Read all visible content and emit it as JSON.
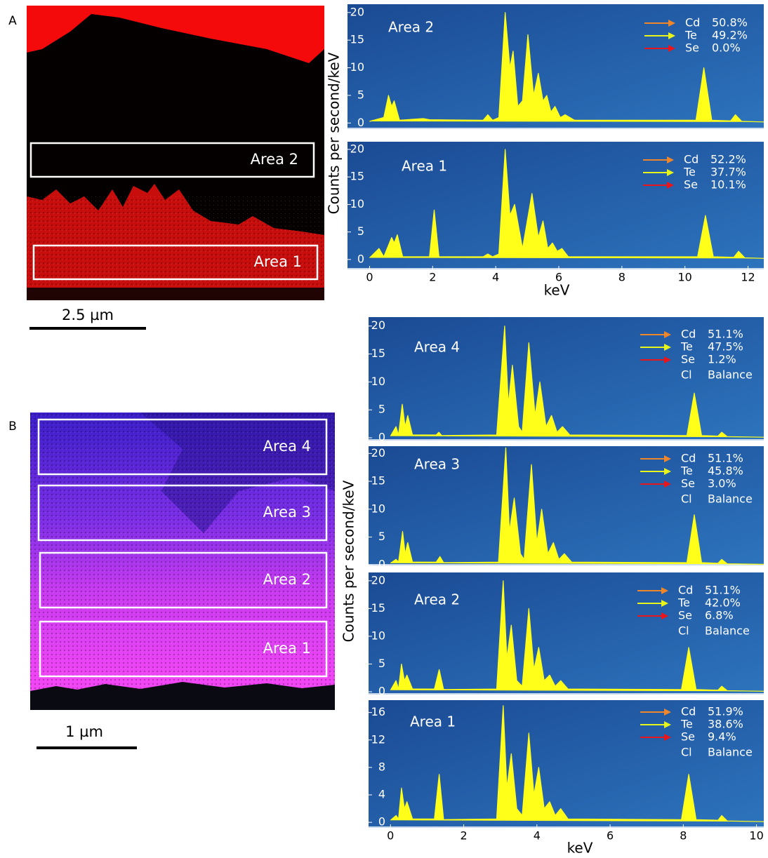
{
  "panels": [
    {
      "label": "A",
      "scale_bar": "2.5 µm",
      "areas": [
        "Area 2",
        "Area 1"
      ],
      "y_label": "Counts per second/keV",
      "x_label": "keV"
    },
    {
      "label": "B",
      "scale_bar": "1 µm",
      "areas": [
        "Area 4",
        "Area 3",
        "Area 2",
        "Area 1"
      ],
      "y_label": "Counts per second/keV",
      "x_label": "keV"
    }
  ],
  "chart_data": [
    {
      "type": "area",
      "title": "Area 2",
      "color": "#ffff1a",
      "xlim": [
        -0.7,
        12.5
      ],
      "ylim": [
        -1.1,
        21.5
      ],
      "yticks": [
        0,
        5,
        10,
        15,
        20
      ],
      "x": [
        0,
        0.45,
        0.6,
        0.7,
        0.78,
        0.95,
        1.7,
        1.9,
        3.6,
        3.75,
        3.9,
        4.1,
        4.3,
        4.45,
        4.55,
        4.7,
        4.85,
        5.02,
        5.2,
        5.35,
        5.5,
        5.62,
        5.75,
        5.88,
        6.05,
        6.2,
        6.5,
        10.35,
        10.6,
        10.85,
        11.45,
        11.6,
        11.8,
        12.5
      ],
      "values": [
        0.3,
        1,
        5,
        3,
        4,
        0.5,
        0.8,
        0.6,
        0.5,
        1.5,
        0.5,
        1,
        20,
        10,
        13,
        3,
        4,
        16,
        5,
        9,
        4,
        5,
        2,
        3,
        1,
        1.5,
        0.5,
        0.5,
        10,
        0.5,
        0.4,
        1.5,
        0.3,
        0.2
      ],
      "legend": [
        {
          "name": "Cd",
          "label": "50.8%",
          "color": "#f0862a"
        },
        {
          "name": "Te",
          "label": "49.2%",
          "color": "#e8f51c"
        },
        {
          "name": "Se",
          "label": "0.0%",
          "color": "#e8161c"
        }
      ]
    },
    {
      "type": "area",
      "title": "Area 1",
      "color": "#ffff1a",
      "xlim": [
        -0.7,
        12.5
      ],
      "ylim": [
        -1.8,
        21.4
      ],
      "yticks": [
        0,
        5,
        10,
        15,
        20
      ],
      "xticks": [
        0,
        2,
        4,
        6,
        8,
        10,
        12
      ],
      "x": [
        0,
        0.3,
        0.45,
        0.7,
        0.78,
        0.88,
        1.05,
        1.9,
        2.05,
        2.2,
        3.6,
        3.75,
        3.9,
        4.1,
        4.3,
        4.45,
        4.6,
        4.85,
        5.15,
        5.35,
        5.5,
        5.65,
        5.8,
        5.95,
        6.1,
        6.3,
        10.4,
        10.65,
        10.9,
        11.55,
        11.7,
        11.9,
        12.5
      ],
      "values": [
        0.3,
        2,
        0.5,
        4,
        3,
        4.5,
        0.5,
        0.5,
        9,
        0.5,
        0.5,
        1,
        0.5,
        1,
        20,
        8,
        10,
        2,
        12,
        4,
        7,
        2,
        3,
        1.5,
        2,
        0.5,
        0.5,
        8,
        0.5,
        0.4,
        1.5,
        0.3,
        0.2
      ],
      "legend": [
        {
          "name": "Cd",
          "label": "52.2%",
          "color": "#f0862a"
        },
        {
          "name": "Te",
          "label": "37.7%",
          "color": "#e8f51c"
        },
        {
          "name": "Se",
          "label": "10.1%",
          "color": "#e8161c"
        }
      ]
    },
    {
      "type": "area",
      "title": "Area 4",
      "color": "#ffff1a",
      "xlim": [
        -0.6,
        10.2
      ],
      "ylim": [
        -0.5,
        21.6
      ],
      "yticks": [
        0,
        5,
        10,
        15,
        20
      ],
      "x": [
        0,
        0.15,
        0.22,
        0.32,
        0.4,
        0.47,
        0.6,
        1.25,
        1.32,
        1.4,
        2.9,
        3.12,
        3.22,
        3.33,
        3.5,
        3.6,
        3.78,
        3.95,
        4.08,
        4.25,
        4.4,
        4.55,
        4.7,
        4.9,
        8.1,
        8.3,
        8.5,
        8.95,
        9.05,
        9.2,
        10.2
      ],
      "values": [
        0.3,
        2,
        0.5,
        6,
        2,
        4,
        0.5,
        0.5,
        1,
        0.4,
        0.5,
        20,
        6,
        13,
        2,
        1,
        17,
        4,
        10,
        2,
        4,
        1,
        2,
        0.5,
        0.4,
        8,
        0.4,
        0.3,
        1,
        0.2,
        0.1
      ],
      "legend": [
        {
          "name": "Cd",
          "label": "51.1%",
          "color": "#f0862a"
        },
        {
          "name": "Te",
          "label": "47.5%",
          "color": "#e8f51c"
        },
        {
          "name": "Se",
          "label": "1.2%",
          "color": "#e8161c"
        },
        {
          "name": "Cl",
          "label": "Balance"
        }
      ]
    },
    {
      "type": "area",
      "title": "Area 3",
      "color": "#ffff1a",
      "xlim": [
        -0.6,
        10.2
      ],
      "ylim": [
        -0.1,
        21.3
      ],
      "yticks": [
        0,
        5,
        10,
        15,
        20
      ],
      "x": [
        0,
        0.15,
        0.22,
        0.33,
        0.4,
        0.47,
        0.6,
        1.25,
        1.35,
        1.45,
        2.95,
        3.15,
        3.25,
        3.38,
        3.55,
        3.65,
        3.85,
        4.0,
        4.13,
        4.3,
        4.45,
        4.6,
        4.75,
        4.95,
        8.1,
        8.3,
        8.5,
        8.95,
        9.05,
        9.2,
        10.2
      ],
      "values": [
        0.3,
        1,
        0.5,
        6,
        2,
        4,
        0.5,
        0.5,
        1.5,
        0.4,
        0.5,
        21,
        6,
        12,
        2,
        1,
        18,
        4,
        10,
        2,
        4,
        1,
        2,
        0.5,
        0.4,
        9,
        0.4,
        0.3,
        1,
        0.2,
        0.1
      ],
      "legend": [
        {
          "name": "Cd",
          "label": "51.1%",
          "color": "#f0862a"
        },
        {
          "name": "Te",
          "label": "45.8%",
          "color": "#e8f51c"
        },
        {
          "name": "Se",
          "label": "3.0%",
          "color": "#e8161c"
        },
        {
          "name": "Cl",
          "label": "Balance"
        }
      ]
    },
    {
      "type": "area",
      "title": "Area 2",
      "color": "#ffff1a",
      "xlim": [
        -0.6,
        10.2
      ],
      "ylim": [
        -0.5,
        21.5
      ],
      "yticks": [
        0,
        5,
        10,
        15,
        20
      ],
      "x": [
        0,
        0.15,
        0.22,
        0.3,
        0.38,
        0.45,
        0.6,
        1.2,
        1.33,
        1.45,
        2.9,
        3.08,
        3.18,
        3.3,
        3.45,
        3.6,
        3.78,
        3.92,
        4.05,
        4.2,
        4.35,
        4.5,
        4.65,
        4.85,
        7.95,
        8.15,
        8.35,
        8.95,
        9.05,
        9.2,
        10.2
      ],
      "values": [
        0.3,
        2,
        0.5,
        5,
        2,
        3,
        0.5,
        0.5,
        4,
        0.4,
        0.5,
        20,
        6,
        12,
        2,
        1,
        15,
        4,
        8,
        2,
        3,
        1,
        2,
        0.5,
        0.4,
        8,
        0.4,
        0.3,
        1,
        0.2,
        0.1
      ],
      "legend": [
        {
          "name": "Cd",
          "label": "51.1%",
          "color": "#f0862a"
        },
        {
          "name": "Te",
          "label": "42.0%",
          "color": "#e8f51c"
        },
        {
          "name": "Se",
          "label": "6.8%",
          "color": "#e8161c"
        },
        {
          "name": "Cl",
          "label": "Balance"
        }
      ]
    },
    {
      "type": "area",
      "title": "Area 1",
      "color": "#ffff1a",
      "xlim": [
        -0.6,
        10.2
      ],
      "ylim": [
        -0.8,
        17.8
      ],
      "yticks": [
        0,
        4,
        8,
        12,
        16
      ],
      "xticks": [
        0,
        2,
        4,
        6,
        8,
        10
      ],
      "x": [
        0,
        0.15,
        0.22,
        0.3,
        0.38,
        0.45,
        0.6,
        1.2,
        1.33,
        1.45,
        2.9,
        3.08,
        3.18,
        3.3,
        3.45,
        3.6,
        3.78,
        3.92,
        4.05,
        4.2,
        4.35,
        4.5,
        4.65,
        4.85,
        7.95,
        8.15,
        8.35,
        8.95,
        9.05,
        9.2,
        10.2
      ],
      "values": [
        0.3,
        1,
        0.5,
        5,
        2,
        3,
        0.5,
        0.5,
        7,
        0.4,
        0.5,
        17,
        5,
        10,
        2,
        1,
        13,
        4,
        8,
        2,
        3,
        1,
        2,
        0.5,
        0.4,
        7,
        0.4,
        0.3,
        1,
        0.2,
        0.1
      ],
      "legend": [
        {
          "name": "Cd",
          "label": "51.9%",
          "color": "#f0862a"
        },
        {
          "name": "Te",
          "label": "38.6%",
          "color": "#e8f51c"
        },
        {
          "name": "Se",
          "label": "9.4%",
          "color": "#e8161c"
        },
        {
          "name": "Cl",
          "label": "Balance"
        }
      ]
    }
  ]
}
